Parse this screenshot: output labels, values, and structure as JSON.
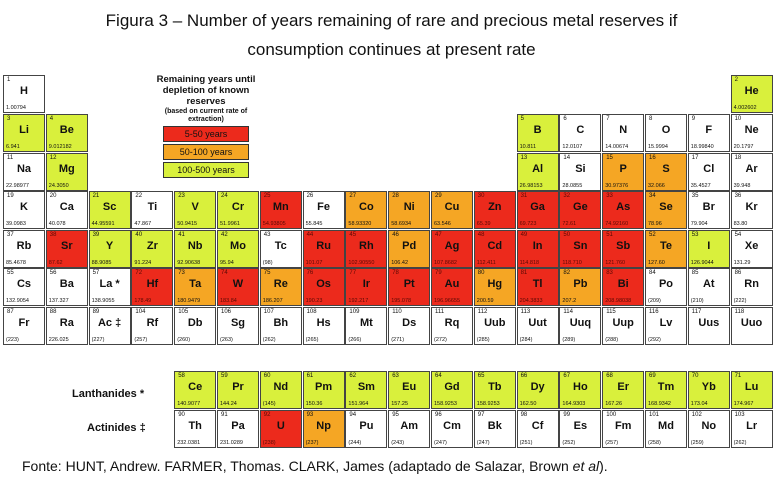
{
  "title_line1": "Figura 3 – Number of years remaining of rare and precious metal reserves if",
  "title_line2": "consumption continues at present rate",
  "legend": {
    "title": "Remaining years until depletion of known reserves",
    "subtitle": "(based on current rate of extraction)",
    "items": [
      {
        "label": "5-50 years",
        "category": "red"
      },
      {
        "label": "50-100 years",
        "category": "orange"
      },
      {
        "label": "100-500 years",
        "category": "lime"
      }
    ]
  },
  "colors": {
    "red": "#ec2a1c",
    "orange": "#f5a624",
    "lime": "#d9f03c",
    "none": "#ffffff"
  },
  "series_labels": {
    "lanthanides": "Lanthanides *",
    "actinides": "Actinides ‡"
  },
  "source": {
    "text": "Fonte: HUNT, Andrew. FARMER, Thomas. CLARK, James (adaptado de Salazar, Brown ",
    "italic": "et al",
    "end": ")."
  },
  "elements": [
    {
      "n": "1",
      "s": "H",
      "m": "1.00794",
      "r": 1,
      "c": 1,
      "cat": "none"
    },
    {
      "n": "2",
      "s": "He",
      "m": "4.002602",
      "r": 1,
      "c": 18,
      "cat": "lime"
    },
    {
      "n": "3",
      "s": "Li",
      "m": "6.941",
      "r": 2,
      "c": 1,
      "cat": "lime"
    },
    {
      "n": "4",
      "s": "Be",
      "m": "9.012182",
      "r": 2,
      "c": 2,
      "cat": "lime"
    },
    {
      "n": "5",
      "s": "B",
      "m": "10.811",
      "r": 2,
      "c": 13,
      "cat": "lime"
    },
    {
      "n": "6",
      "s": "C",
      "m": "12.0107",
      "r": 2,
      "c": 14,
      "cat": "none"
    },
    {
      "n": "7",
      "s": "N",
      "m": "14.00674",
      "r": 2,
      "c": 15,
      "cat": "none"
    },
    {
      "n": "8",
      "s": "O",
      "m": "15.9994",
      "r": 2,
      "c": 16,
      "cat": "none"
    },
    {
      "n": "9",
      "s": "F",
      "m": "18.99840",
      "r": 2,
      "c": 17,
      "cat": "none"
    },
    {
      "n": "10",
      "s": "Ne",
      "m": "20.1797",
      "r": 2,
      "c": 18,
      "cat": "none"
    },
    {
      "n": "11",
      "s": "Na",
      "m": "22.98977",
      "r": 3,
      "c": 1,
      "cat": "none"
    },
    {
      "n": "12",
      "s": "Mg",
      "m": "24.3050",
      "r": 3,
      "c": 2,
      "cat": "lime"
    },
    {
      "n": "13",
      "s": "Al",
      "m": "26.98153",
      "r": 3,
      "c": 13,
      "cat": "lime"
    },
    {
      "n": "14",
      "s": "Si",
      "m": "28.0855",
      "r": 3,
      "c": 14,
      "cat": "none"
    },
    {
      "n": "15",
      "s": "P",
      "m": "30.97376",
      "r": 3,
      "c": 15,
      "cat": "orange"
    },
    {
      "n": "16",
      "s": "S",
      "m": "32.066",
      "r": 3,
      "c": 16,
      "cat": "orange"
    },
    {
      "n": "17",
      "s": "Cl",
      "m": "35.4527",
      "r": 3,
      "c": 17,
      "cat": "none"
    },
    {
      "n": "18",
      "s": "Ar",
      "m": "39.948",
      "r": 3,
      "c": 18,
      "cat": "none"
    },
    {
      "n": "19",
      "s": "K",
      "m": "39.0983",
      "r": 4,
      "c": 1,
      "cat": "none"
    },
    {
      "n": "20",
      "s": "Ca",
      "m": "40.078",
      "r": 4,
      "c": 2,
      "cat": "none"
    },
    {
      "n": "21",
      "s": "Sc",
      "m": "44.95591",
      "r": 4,
      "c": 3,
      "cat": "lime"
    },
    {
      "n": "22",
      "s": "Ti",
      "m": "47.867",
      "r": 4,
      "c": 4,
      "cat": "none"
    },
    {
      "n": "23",
      "s": "V",
      "m": "50.9415",
      "r": 4,
      "c": 5,
      "cat": "lime"
    },
    {
      "n": "24",
      "s": "Cr",
      "m": "51.9961",
      "r": 4,
      "c": 6,
      "cat": "lime"
    },
    {
      "n": "25",
      "s": "Mn",
      "m": "54.93805",
      "r": 4,
      "c": 7,
      "cat": "red"
    },
    {
      "n": "26",
      "s": "Fe",
      "m": "55.845",
      "r": 4,
      "c": 8,
      "cat": "none"
    },
    {
      "n": "27",
      "s": "Co",
      "m": "58.93320",
      "r": 4,
      "c": 9,
      "cat": "orange"
    },
    {
      "n": "28",
      "s": "Ni",
      "m": "58.6934",
      "r": 4,
      "c": 10,
      "cat": "orange"
    },
    {
      "n": "29",
      "s": "Cu",
      "m": "63.546",
      "r": 4,
      "c": 11,
      "cat": "orange"
    },
    {
      "n": "30",
      "s": "Zn",
      "m": "65.39",
      "r": 4,
      "c": 12,
      "cat": "red"
    },
    {
      "n": "31",
      "s": "Ga",
      "m": "69.723",
      "r": 4,
      "c": 13,
      "cat": "red"
    },
    {
      "n": "32",
      "s": "Ge",
      "m": "72.61",
      "r": 4,
      "c": 14,
      "cat": "red"
    },
    {
      "n": "33",
      "s": "As",
      "m": "74.92160",
      "r": 4,
      "c": 15,
      "cat": "red"
    },
    {
      "n": "34",
      "s": "Se",
      "m": "78.96",
      "r": 4,
      "c": 16,
      "cat": "orange"
    },
    {
      "n": "35",
      "s": "Br",
      "m": "79.904",
      "r": 4,
      "c": 17,
      "cat": "none"
    },
    {
      "n": "36",
      "s": "Kr",
      "m": "83.80",
      "r": 4,
      "c": 18,
      "cat": "none"
    },
    {
      "n": "37",
      "s": "Rb",
      "m": "85.4678",
      "r": 5,
      "c": 1,
      "cat": "none"
    },
    {
      "n": "38",
      "s": "Sr",
      "m": "87.62",
      "r": 5,
      "c": 2,
      "cat": "red"
    },
    {
      "n": "39",
      "s": "Y",
      "m": "88.9085",
      "r": 5,
      "c": 3,
      "cat": "lime"
    },
    {
      "n": "40",
      "s": "Zr",
      "m": "91.224",
      "r": 5,
      "c": 4,
      "cat": "lime"
    },
    {
      "n": "41",
      "s": "Nb",
      "m": "92.90638",
      "r": 5,
      "c": 5,
      "cat": "lime"
    },
    {
      "n": "42",
      "s": "Mo",
      "m": "95.94",
      "r": 5,
      "c": 6,
      "cat": "lime"
    },
    {
      "n": "43",
      "s": "Tc",
      "m": "(98)",
      "r": 5,
      "c": 7,
      "cat": "none"
    },
    {
      "n": "44",
      "s": "Ru",
      "m": "101.07",
      "r": 5,
      "c": 8,
      "cat": "red"
    },
    {
      "n": "45",
      "s": "Rh",
      "m": "102.90550",
      "r": 5,
      "c": 9,
      "cat": "red"
    },
    {
      "n": "46",
      "s": "Pd",
      "m": "106.42",
      "r": 5,
      "c": 10,
      "cat": "orange"
    },
    {
      "n": "47",
      "s": "Ag",
      "m": "107.8682",
      "r": 5,
      "c": 11,
      "cat": "red"
    },
    {
      "n": "48",
      "s": "Cd",
      "m": "112.411",
      "r": 5,
      "c": 12,
      "cat": "red"
    },
    {
      "n": "49",
      "s": "In",
      "m": "114.818",
      "r": 5,
      "c": 13,
      "cat": "red"
    },
    {
      "n": "50",
      "s": "Sn",
      "m": "118.710",
      "r": 5,
      "c": 14,
      "cat": "red"
    },
    {
      "n": "51",
      "s": "Sb",
      "m": "121.760",
      "r": 5,
      "c": 15,
      "cat": "red"
    },
    {
      "n": "52",
      "s": "Te",
      "m": "127.60",
      "r": 5,
      "c": 16,
      "cat": "orange"
    },
    {
      "n": "53",
      "s": "I",
      "m": "126.9044",
      "r": 5,
      "c": 17,
      "cat": "lime"
    },
    {
      "n": "54",
      "s": "Xe",
      "m": "131.29",
      "r": 5,
      "c": 18,
      "cat": "none"
    },
    {
      "n": "55",
      "s": "Cs",
      "m": "132.9054",
      "r": 6,
      "c": 1,
      "cat": "none"
    },
    {
      "n": "56",
      "s": "Ba",
      "m": "137.327",
      "r": 6,
      "c": 2,
      "cat": "none"
    },
    {
      "n": "57",
      "s": "La *",
      "m": "138.9055",
      "r": 6,
      "c": 3,
      "cat": "none"
    },
    {
      "n": "72",
      "s": "Hf",
      "m": "178.49",
      "r": 6,
      "c": 4,
      "cat": "red"
    },
    {
      "n": "73",
      "s": "Ta",
      "m": "180.9479",
      "r": 6,
      "c": 5,
      "cat": "orange"
    },
    {
      "n": "74",
      "s": "W",
      "m": "183.84",
      "r": 6,
      "c": 6,
      "cat": "red"
    },
    {
      "n": "75",
      "s": "Re",
      "m": "186.207",
      "r": 6,
      "c": 7,
      "cat": "orange"
    },
    {
      "n": "76",
      "s": "Os",
      "m": "190.23",
      "r": 6,
      "c": 8,
      "cat": "red"
    },
    {
      "n": "77",
      "s": "Ir",
      "m": "192.217",
      "r": 6,
      "c": 9,
      "cat": "red"
    },
    {
      "n": "78",
      "s": "Pt",
      "m": "195.078",
      "r": 6,
      "c": 10,
      "cat": "red"
    },
    {
      "n": "79",
      "s": "Au",
      "m": "196.96655",
      "r": 6,
      "c": 11,
      "cat": "red"
    },
    {
      "n": "80",
      "s": "Hg",
      "m": "200.59",
      "r": 6,
      "c": 12,
      "cat": "orange"
    },
    {
      "n": "81",
      "s": "Tl",
      "m": "204.3833",
      "r": 6,
      "c": 13,
      "cat": "red"
    },
    {
      "n": "82",
      "s": "Pb",
      "m": "207.2",
      "r": 6,
      "c": 14,
      "cat": "orange"
    },
    {
      "n": "83",
      "s": "Bi",
      "m": "208.98038",
      "r": 6,
      "c": 15,
      "cat": "red"
    },
    {
      "n": "84",
      "s": "Po",
      "m": "(209)",
      "r": 6,
      "c": 16,
      "cat": "none"
    },
    {
      "n": "85",
      "s": "At",
      "m": "(210)",
      "r": 6,
      "c": 17,
      "cat": "none"
    },
    {
      "n": "86",
      "s": "Rn",
      "m": "(222)",
      "r": 6,
      "c": 18,
      "cat": "none"
    },
    {
      "n": "87",
      "s": "Fr",
      "m": "(223)",
      "r": 7,
      "c": 1,
      "cat": "none"
    },
    {
      "n": "88",
      "s": "Ra",
      "m": "226.025",
      "r": 7,
      "c": 2,
      "cat": "none"
    },
    {
      "n": "89",
      "s": "Ac ‡",
      "m": "(227)",
      "r": 7,
      "c": 3,
      "cat": "none"
    },
    {
      "n": "104",
      "s": "Rf",
      "m": "(257)",
      "r": 7,
      "c": 4,
      "cat": "none"
    },
    {
      "n": "105",
      "s": "Db",
      "m": "(260)",
      "r": 7,
      "c": 5,
      "cat": "none"
    },
    {
      "n": "106",
      "s": "Sg",
      "m": "(263)",
      "r": 7,
      "c": 6,
      "cat": "none"
    },
    {
      "n": "107",
      "s": "Bh",
      "m": "(262)",
      "r": 7,
      "c": 7,
      "cat": "none"
    },
    {
      "n": "108",
      "s": "Hs",
      "m": "(265)",
      "r": 7,
      "c": 8,
      "cat": "none"
    },
    {
      "n": "109",
      "s": "Mt",
      "m": "(266)",
      "r": 7,
      "c": 9,
      "cat": "none"
    },
    {
      "n": "110",
      "s": "Ds",
      "m": "(271)",
      "r": 7,
      "c": 10,
      "cat": "none"
    },
    {
      "n": "111",
      "s": "Rq",
      "m": "(272)",
      "r": 7,
      "c": 11,
      "cat": "none"
    },
    {
      "n": "112",
      "s": "Uub",
      "m": "(285)",
      "r": 7,
      "c": 12,
      "cat": "none"
    },
    {
      "n": "113",
      "s": "Uut",
      "m": "(284)",
      "r": 7,
      "c": 13,
      "cat": "none"
    },
    {
      "n": "114",
      "s": "Uuq",
      "m": "(289)",
      "r": 7,
      "c": 14,
      "cat": "none"
    },
    {
      "n": "115",
      "s": "Uup",
      "m": "(288)",
      "r": 7,
      "c": 15,
      "cat": "none"
    },
    {
      "n": "116",
      "s": "Lv",
      "m": "(292)",
      "r": 7,
      "c": 16,
      "cat": "none"
    },
    {
      "n": "117",
      "s": "Uus",
      "m": "",
      "r": 7,
      "c": 17,
      "cat": "none"
    },
    {
      "n": "118",
      "s": "Uuo",
      "m": "",
      "r": 7,
      "c": 18,
      "cat": "none"
    },
    {
      "n": "58",
      "s": "Ce",
      "m": "140.9077",
      "r": 8,
      "c": 5,
      "cat": "lime"
    },
    {
      "n": "59",
      "s": "Pr",
      "m": "144.24",
      "r": 8,
      "c": 6,
      "cat": "lime"
    },
    {
      "n": "60",
      "s": "Nd",
      "m": "(145)",
      "r": 8,
      "c": 7,
      "cat": "lime"
    },
    {
      "n": "61",
      "s": "Pm",
      "m": "150.36",
      "r": 8,
      "c": 8,
      "cat": "lime"
    },
    {
      "n": "62",
      "s": "Sm",
      "m": "151.964",
      "r": 8,
      "c": 9,
      "cat": "lime"
    },
    {
      "n": "63",
      "s": "Eu",
      "m": "157.25",
      "r": 8,
      "c": 10,
      "cat": "lime"
    },
    {
      "n": "64",
      "s": "Gd",
      "m": "158.9253",
      "r": 8,
      "c": 11,
      "cat": "lime"
    },
    {
      "n": "65",
      "s": "Tb",
      "m": "158.9253",
      "r": 8,
      "c": 12,
      "cat": "lime"
    },
    {
      "n": "66",
      "s": "Dy",
      "m": "162.50",
      "r": 8,
      "c": 13,
      "cat": "lime"
    },
    {
      "n": "67",
      "s": "Ho",
      "m": "164.9303",
      "r": 8,
      "c": 14,
      "cat": "lime"
    },
    {
      "n": "68",
      "s": "Er",
      "m": "167.26",
      "r": 8,
      "c": 15,
      "cat": "lime"
    },
    {
      "n": "69",
      "s": "Tm",
      "m": "168.9342",
      "r": 8,
      "c": 16,
      "cat": "lime"
    },
    {
      "n": "70",
      "s": "Yb",
      "m": "173.04",
      "r": 8,
      "c": 17,
      "cat": "lime"
    },
    {
      "n": "71",
      "s": "Lu",
      "m": "174.967",
      "r": 8,
      "c": 18,
      "cat": "lime"
    },
    {
      "n": "90",
      "s": "Th",
      "m": "232.0381",
      "r": 9,
      "c": 5,
      "cat": "none"
    },
    {
      "n": "91",
      "s": "Pa",
      "m": "231.0289",
      "r": 9,
      "c": 6,
      "cat": "none"
    },
    {
      "n": "92",
      "s": "U",
      "m": "(238)",
      "r": 9,
      "c": 7,
      "cat": "red"
    },
    {
      "n": "93",
      "s": "Np",
      "m": "(237)",
      "r": 9,
      "c": 8,
      "cat": "orange"
    },
    {
      "n": "94",
      "s": "Pu",
      "m": "(244)",
      "r": 9,
      "c": 9,
      "cat": "none"
    },
    {
      "n": "95",
      "s": "Am",
      "m": "(243)",
      "r": 9,
      "c": 10,
      "cat": "none"
    },
    {
      "n": "96",
      "s": "Cm",
      "m": "(247)",
      "r": 9,
      "c": 11,
      "cat": "none"
    },
    {
      "n": "97",
      "s": "Bk",
      "m": "(247)",
      "r": 9,
      "c": 12,
      "cat": "none"
    },
    {
      "n": "98",
      "s": "Cf",
      "m": "(251)",
      "r": 9,
      "c": 13,
      "cat": "none"
    },
    {
      "n": "99",
      "s": "Es",
      "m": "(252)",
      "r": 9,
      "c": 14,
      "cat": "none"
    },
    {
      "n": "100",
      "s": "Fm",
      "m": "(257)",
      "r": 9,
      "c": 15,
      "cat": "none"
    },
    {
      "n": "101",
      "s": "Md",
      "m": "(258)",
      "r": 9,
      "c": 16,
      "cat": "none"
    },
    {
      "n": "102",
      "s": "No",
      "m": "(259)",
      "r": 9,
      "c": 17,
      "cat": "none"
    },
    {
      "n": "103",
      "s": "Lr",
      "m": "(262)",
      "r": 9,
      "c": 18,
      "cat": "none"
    }
  ]
}
